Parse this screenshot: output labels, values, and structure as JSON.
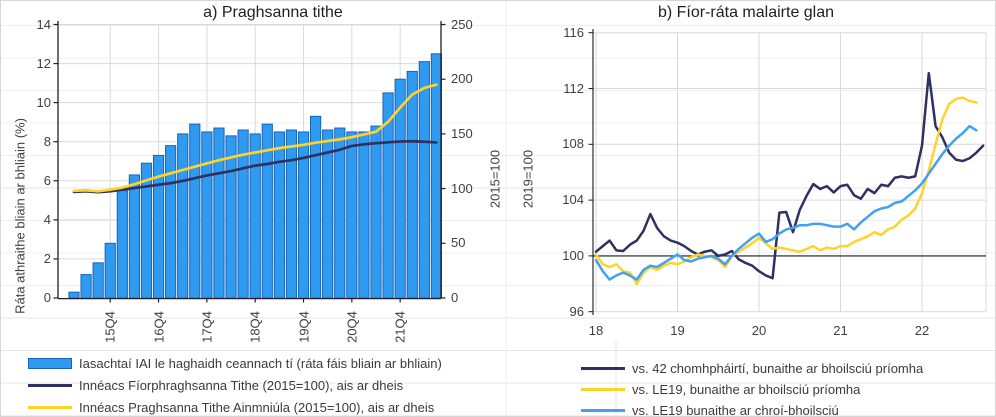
{
  "colors": {
    "bar_fill": "#2E9AF0",
    "bar_border": "#1A63B8",
    "navy": "#2F3161",
    "yellow": "#FFD329",
    "light_blue": "#41A0F1",
    "gridline": "#D9D9D9",
    "axis": "#20202F",
    "baseline": "#1A1A1A",
    "sheet_line": "#EFEFEF",
    "sheet_line_strong": "#E6E6E6",
    "tick_text": "#404040",
    "title_text": "#1F1F1F",
    "legend_text": "#3B3B3B"
  },
  "chart_data": [
    {
      "id": "panel_a",
      "type": "combo-bar-line",
      "title": "a) Praghsanna tithe",
      "y_left": {
        "label": "Ráta athraithe bliain ar bhliain (%)",
        "min": 0,
        "max": 14,
        "step": 2,
        "ticks": [
          0,
          2,
          4,
          6,
          8,
          10,
          12,
          14
        ]
      },
      "y_right": {
        "label": "2015=100",
        "min": 0,
        "max": 250,
        "step": 50,
        "ticks": [
          0,
          50,
          100,
          150,
          200,
          250
        ]
      },
      "x_ticklabels": [
        "15Q4",
        "16Q4",
        "17Q4",
        "18Q4",
        "19Q4",
        "20Q4",
        "21Q4"
      ],
      "categories": [
        "15Q1",
        "15Q2",
        "15Q3",
        "15Q4",
        "16Q1",
        "16Q2",
        "16Q3",
        "16Q4",
        "17Q1",
        "17Q2",
        "17Q3",
        "17Q4",
        "18Q1",
        "18Q2",
        "18Q3",
        "18Q4",
        "19Q1",
        "19Q2",
        "19Q3",
        "19Q4",
        "20Q1",
        "20Q2",
        "20Q3",
        "20Q4",
        "21Q1",
        "21Q2",
        "21Q3",
        "21Q4",
        "22Q1",
        "22Q2",
        "22Q3"
      ],
      "bars": {
        "name": "Iasachtaí IAI le haghaidh ceannach tí (ráta fáis bliain ar bhliain)",
        "axis": "left",
        "values": [
          0.3,
          1.2,
          1.8,
          2.8,
          5.5,
          6.3,
          6.9,
          7.3,
          7.8,
          8.4,
          8.9,
          8.5,
          8.7,
          8.3,
          8.6,
          8.4,
          8.9,
          8.5,
          8.6,
          8.5,
          9.3,
          8.6,
          8.7,
          8.5,
          8.5,
          8.8,
          10.5,
          11.2,
          11.6,
          12.1,
          12.5
        ]
      },
      "lines": [
        {
          "name": "Innéacs Fíorphraghsanna Tithe (2015=100), ais ar dheis",
          "axis": "right",
          "color_key": "navy",
          "values": [
            97,
            97.5,
            96.8,
            97.5,
            99,
            100.5,
            102,
            103.5,
            105,
            107,
            109.5,
            112,
            114,
            116,
            118.5,
            121,
            122.5,
            124.5,
            126,
            128,
            130.5,
            133,
            135.5,
            139,
            140.5,
            141.5,
            142.3,
            143,
            143.3,
            142.8,
            142.2
          ]
        },
        {
          "name": "Innéacs Praghsanna Tithe Ainmniúla (2015=100), ais ar dheis",
          "axis": "right",
          "color_key": "yellow",
          "values": [
            98,
            98.5,
            97.5,
            99,
            101,
            104,
            107.5,
            111,
            114,
            117,
            120,
            123,
            126,
            128.5,
            131,
            133,
            135,
            137,
            138.5,
            140,
            142,
            143.5,
            145,
            147,
            149.5,
            152,
            161,
            174,
            186,
            192,
            195
          ]
        }
      ]
    },
    {
      "id": "panel_b",
      "type": "line",
      "title": "b) Fíor-ráta malairte glan",
      "y": {
        "label": "2019=100",
        "min": 96,
        "max": 116,
        "step": 4,
        "ticks": [
          96,
          100,
          104,
          108,
          112,
          116
        ]
      },
      "x": {
        "ticks": [
          18,
          19,
          20,
          21,
          22
        ],
        "min": 18,
        "max": 22.85,
        "start": 18.0,
        "step": 0.0833333
      },
      "baseline": 100,
      "series": [
        {
          "name": "vs. 42 chomhpháirtí, bunaithe ar bhoilsciú príomha",
          "color_key": "navy",
          "values": [
            100.3,
            100.7,
            101.1,
            100.4,
            100.35,
            100.8,
            101.1,
            101.8,
            103.0,
            102.0,
            101.4,
            101.1,
            100.95,
            100.7,
            100.35,
            100.1,
            100.3,
            100.4,
            100.0,
            100.1,
            100.35,
            99.76,
            99.5,
            99.3,
            98.9,
            98.6,
            98.4,
            103.1,
            103.15,
            101.7,
            103.3,
            104.3,
            105.15,
            104.8,
            105.0,
            104.55,
            105.0,
            105.1,
            104.35,
            104.1,
            104.8,
            104.5,
            105.1,
            105.0,
            105.6,
            105.7,
            105.6,
            105.7,
            107.9,
            113.1,
            109.3,
            108.5,
            107.4,
            106.9,
            106.8,
            107.0,
            107.4,
            107.9
          ]
        },
        {
          "name": "vs. LE19, bunaithe ar bhoilsciú príomha",
          "color_key": "yellow",
          "values": [
            100.1,
            99.4,
            99.2,
            99.4,
            98.9,
            98.8,
            98.0,
            98.8,
            99.2,
            99.0,
            99.3,
            99.5,
            99.4,
            99.6,
            99.9,
            100.1,
            100.0,
            99.9,
            99.7,
            99.2,
            100.0,
            100.3,
            100.6,
            100.9,
            101.3,
            100.9,
            100.5,
            100.6,
            100.5,
            100.4,
            100.3,
            100.5,
            100.7,
            100.4,
            100.6,
            100.5,
            100.7,
            100.7,
            101.0,
            101.2,
            101.4,
            101.7,
            101.5,
            101.9,
            102.1,
            102.6,
            102.9,
            103.4,
            104.5,
            106.1,
            108.0,
            109.8,
            110.9,
            111.25,
            111.35,
            111.1,
            111.0
          ]
        },
        {
          "name": "vs. LE19 bunaithe ar chroí-bhoilsciú",
          "color_key": "light_blue",
          "values": [
            99.7,
            98.9,
            98.3,
            98.6,
            98.8,
            98.6,
            98.3,
            99.0,
            99.3,
            99.2,
            99.5,
            99.8,
            100.1,
            99.7,
            99.6,
            99.8,
            99.9,
            100.0,
            99.8,
            99.4,
            100.0,
            100.5,
            100.9,
            101.3,
            101.6,
            101.0,
            101.2,
            101.6,
            101.9,
            102.0,
            102.2,
            102.2,
            102.3,
            102.3,
            102.2,
            102.1,
            102.1,
            102.3,
            101.9,
            102.4,
            102.8,
            103.2,
            103.4,
            103.5,
            103.8,
            103.9,
            104.3,
            104.7,
            105.2,
            105.9,
            106.6,
            107.3,
            107.9,
            108.4,
            108.8,
            109.3,
            109.0
          ]
        }
      ]
    }
  ]
}
